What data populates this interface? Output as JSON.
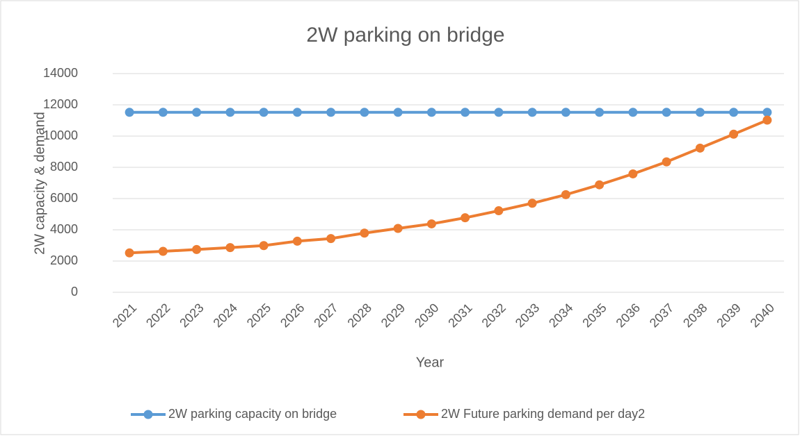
{
  "chart_data": {
    "type": "line",
    "title": "2W parking on bridge",
    "x_label": "Year",
    "y_label": "2W capacity & demand",
    "categories": [
      "2021",
      "2022",
      "2023",
      "2024",
      "2025",
      "2026",
      "2027",
      "2028",
      "2029",
      "2030",
      "2031",
      "2032",
      "2033",
      "2034",
      "2035",
      "2036",
      "2037",
      "2038",
      "2039",
      "2040"
    ],
    "series": [
      {
        "name": "2W parking capacity on bridge",
        "color": "#5b9bd5",
        "values": [
          11520,
          11520,
          11520,
          11520,
          11520,
          11520,
          11520,
          11520,
          11520,
          11520,
          11520,
          11520,
          11520,
          11520,
          11520,
          11520,
          11520,
          11520,
          11520,
          11520
        ]
      },
      {
        "name": "2W Future parking demand per day2",
        "color": "#ed7d31",
        "values": [
          2520,
          2620,
          2740,
          2860,
          2990,
          3270,
          3440,
          3790,
          4090,
          4380,
          4770,
          5220,
          5700,
          6250,
          6880,
          7580,
          8350,
          9230,
          10120,
          11020
        ]
      }
    ],
    "ylim": [
      0,
      14000
    ],
    "yticks": [
      0,
      2000,
      4000,
      6000,
      8000,
      10000,
      12000,
      14000
    ],
    "grid": true,
    "legend": "bottom"
  }
}
